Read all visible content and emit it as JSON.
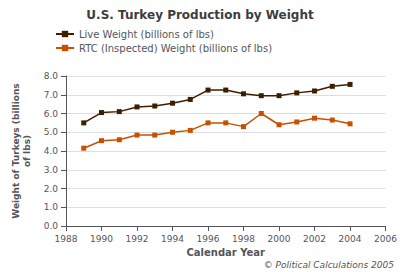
{
  "chart_data": {
    "type": "line",
    "title": "U.S. Turkey Production by Weight",
    "x_label": "Calendar Year",
    "y_label": "Weight of Turkeys (billions\nof lbs)",
    "x": [
      1989,
      1990,
      1991,
      1992,
      1993,
      1994,
      1995,
      1996,
      1997,
      1998,
      1999,
      2000,
      2001,
      2002,
      2003,
      2004
    ],
    "series": [
      {
        "name": "Live Weight (billions of lbs)",
        "color": "#3d1f00",
        "marker": "square",
        "values": [
          5.5,
          6.05,
          6.1,
          6.35,
          6.4,
          6.55,
          6.75,
          7.25,
          7.25,
          7.05,
          6.95,
          6.95,
          7.1,
          7.2,
          7.45,
          7.55
        ]
      },
      {
        "name": "RTC (Inspected) Weight (billions of lbs)",
        "color": "#c85000",
        "marker": "square",
        "values": [
          4.15,
          4.55,
          4.6,
          4.85,
          4.85,
          5.0,
          5.1,
          5.5,
          5.5,
          5.3,
          6.0,
          5.4,
          5.55,
          5.75,
          5.65,
          5.45
        ]
      }
    ],
    "xlim": [
      1988,
      2006
    ],
    "xticks": [
      1988,
      1990,
      1992,
      1994,
      1996,
      1998,
      2000,
      2002,
      2004,
      2006
    ],
    "ylim": [
      0.0,
      8.0
    ],
    "yticks": [
      {
        "value": 0,
        "label": "0.0"
      },
      {
        "value": 1,
        "label": "1.0"
      },
      {
        "value": 2,
        "label": "2.0"
      },
      {
        "value": 3,
        "label": "3.0"
      },
      {
        "value": 4,
        "label": "4.0"
      },
      {
        "value": 5,
        "label": "5.0"
      },
      {
        "value": 6,
        "label": "6.0"
      },
      {
        "value": 7,
        "label": "7.0"
      },
      {
        "value": 8,
        "label": "8.0"
      }
    ],
    "grid": true,
    "legend": "upper left",
    "annotations": [
      "© Political Calculations 2005"
    ]
  }
}
